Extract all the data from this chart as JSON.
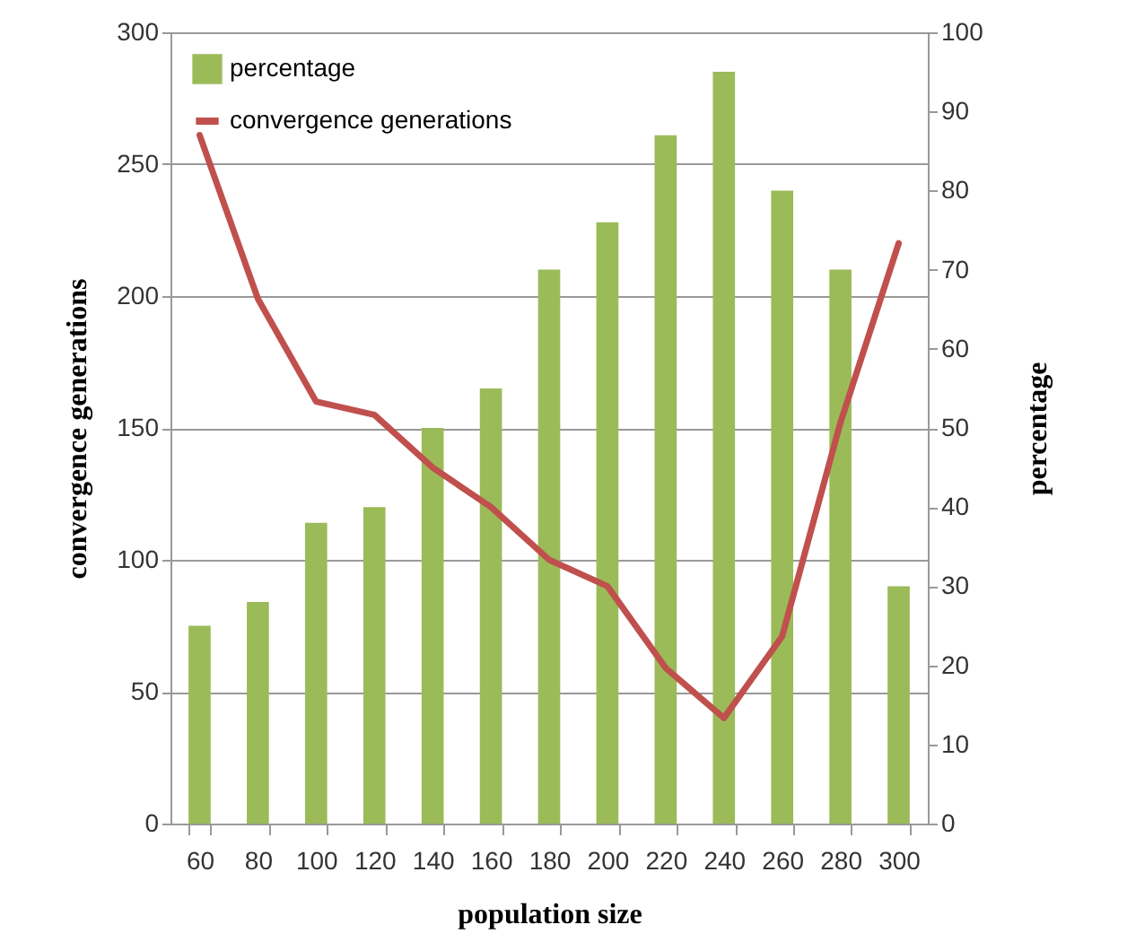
{
  "chart_data": {
    "type": "bar",
    "xlabel": "population size",
    "ylabel": "convergence generations",
    "y2label": "percentage",
    "categories": [
      "60",
      "80",
      "100",
      "120",
      "140",
      "160",
      "180",
      "200",
      "220",
      "240",
      "260",
      "280",
      "300"
    ],
    "series": [
      {
        "name": "percentage",
        "axis": "y2",
        "color": "#9bbb59",
        "values": [
          25,
          28,
          38,
          40,
          50,
          55,
          70,
          76,
          87,
          95,
          80,
          70,
          30
        ]
      },
      {
        "name": "convergence generations",
        "type": "line",
        "color": "#c0504d",
        "values": [
          261,
          199,
          160,
          155,
          135,
          120,
          100,
          90,
          59,
          40,
          71,
          152,
          220
        ]
      }
    ],
    "ylim": [
      0,
      300
    ],
    "yticks": [
      0,
      50,
      100,
      150,
      200,
      250,
      300
    ],
    "y2lim": [
      0,
      100
    ],
    "y2ticks": [
      0,
      10,
      20,
      30,
      40,
      50,
      60,
      70,
      80,
      90,
      100
    ],
    "grid": "y",
    "legend": "top left"
  }
}
